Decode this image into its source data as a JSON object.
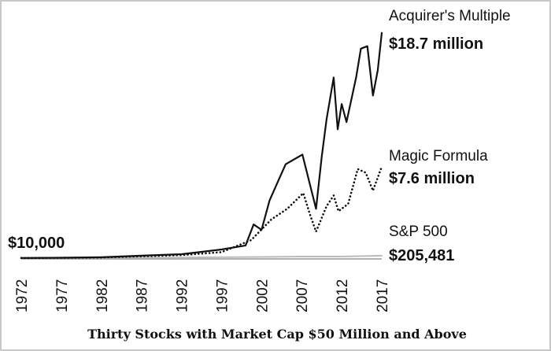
{
  "chart_data": {
    "type": "line",
    "title": "Thirty Stocks with Market Cap $50 Million and Above",
    "xlabel": "",
    "ylabel": "",
    "xlim": [
      1972,
      2017
    ],
    "ylim": [
      0,
      20000000
    ],
    "x_ticks": [
      "1972",
      "1977",
      "1982",
      "1987",
      "1992",
      "1997",
      "2002",
      "2007",
      "2012",
      "2017"
    ],
    "grid": false,
    "start_label": "$10,000",
    "series": [
      {
        "name": "Acquirer's Multiple",
        "end_label": "$18.7 million",
        "style": "solid",
        "color": "#111111",
        "x": [
          1972,
          1977,
          1982,
          1987,
          1992,
          1997,
          2000,
          2001,
          2002,
          2003,
          2004,
          2005,
          2007.1,
          2008.8,
          2009.5,
          2010.1,
          2011,
          2011.5,
          2012,
          2012.6,
          2013.8,
          2014.4,
          2015.2,
          2015.9,
          2016.5,
          2017
        ],
        "y": [
          10000,
          30000,
          70000,
          200000,
          330000,
          720000,
          1050000,
          2800000,
          2350000,
          4800000,
          6300000,
          7800000,
          8600000,
          4100000,
          8400000,
          11500000,
          15000000,
          10700000,
          12800000,
          11300000,
          15000000,
          17400000,
          17600000,
          13500000,
          15600000,
          18700000
        ]
      },
      {
        "name": "Magic Formula",
        "end_label": "$7.6 million",
        "style": "dotted",
        "color": "#111111",
        "x": [
          1972,
          1977,
          1982,
          1987,
          1992,
          1997,
          2000.7,
          2003.2,
          2005.2,
          2007.2,
          2008.1,
          2008.8,
          2010.1,
          2011,
          2011.6,
          2012.8,
          2014,
          2015,
          2015.9,
          2017
        ],
        "y": [
          10000,
          25000,
          55000,
          150000,
          250000,
          500000,
          1500000,
          3200000,
          4100000,
          5400000,
          3500000,
          2200000,
          4300000,
          5200000,
          3900000,
          4500000,
          7400000,
          7100000,
          5600000,
          7600000
        ]
      },
      {
        "name": "S&P 500",
        "end_label": "$205,481",
        "style": "solid",
        "color": "#bbbbbb",
        "x": [
          1972,
          1982,
          1992,
          2002,
          2007,
          2012,
          2017
        ],
        "y": [
          10000,
          20000,
          50000,
          100000,
          130000,
          130000,
          205481
        ]
      }
    ]
  }
}
